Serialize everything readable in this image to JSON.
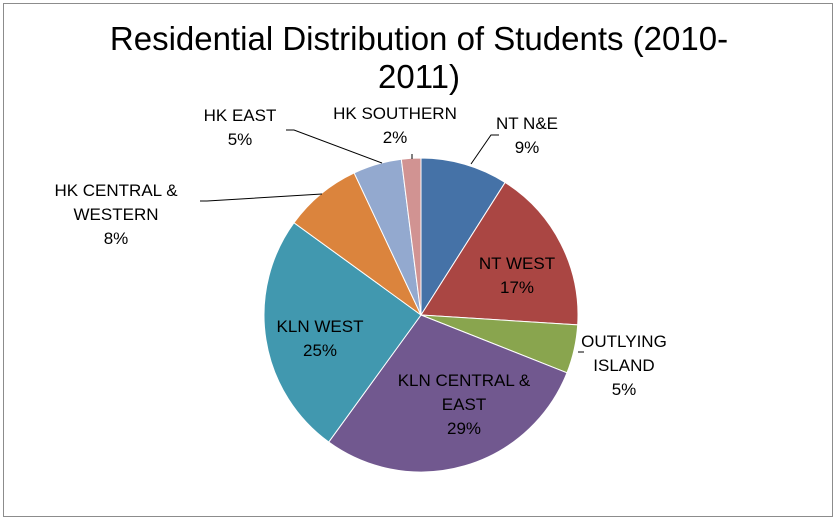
{
  "chart_data": {
    "type": "pie",
    "title": "Residential Distribution of Students (2010-2011)",
    "title_lines": [
      "Residential Distribution of Students (2010-",
      "2011)"
    ],
    "unit": "%",
    "start_angle_deg": 0,
    "direction": "clockwise",
    "legend": "none",
    "slices": [
      {
        "name": "NT N&E",
        "label_lines": [
          "NT N&E"
        ],
        "value": 9,
        "label": "9%",
        "color": "#4572a7",
        "label_position": "outside"
      },
      {
        "name": "NT WEST",
        "label_lines": [
          "NT WEST"
        ],
        "value": 17,
        "label": "17%",
        "color": "#aa4643",
        "label_position": "inside"
      },
      {
        "name": "OUTLYING ISLAND",
        "label_lines": [
          "OUTLYING",
          "ISLAND"
        ],
        "value": 5,
        "label": "5%",
        "color": "#89a54e",
        "label_position": "outside"
      },
      {
        "name": "KLN CENTRAL & EAST",
        "label_lines": [
          "KLN CENTRAL &",
          "EAST"
        ],
        "value": 29,
        "label": "29%",
        "color": "#71588f",
        "label_position": "inside"
      },
      {
        "name": "KLN WEST",
        "label_lines": [
          "KLN WEST"
        ],
        "value": 25,
        "label": "25%",
        "color": "#4198af",
        "label_position": "inside"
      },
      {
        "name": "HK CENTRAL & WESTERN",
        "label_lines": [
          "HK CENTRAL &",
          "WESTERN"
        ],
        "value": 8,
        "label": "8%",
        "color": "#db843d",
        "label_position": "outside"
      },
      {
        "name": "HK EAST",
        "label_lines": [
          "HK EAST"
        ],
        "value": 5,
        "label": "5%",
        "color": "#93a9cf",
        "label_position": "outside"
      },
      {
        "name": "HK SOUTHERN",
        "label_lines": [
          "HK SOUTHERN"
        ],
        "value": 2,
        "label": "2%",
        "color": "#d19392",
        "label_position": "outside"
      }
    ]
  }
}
